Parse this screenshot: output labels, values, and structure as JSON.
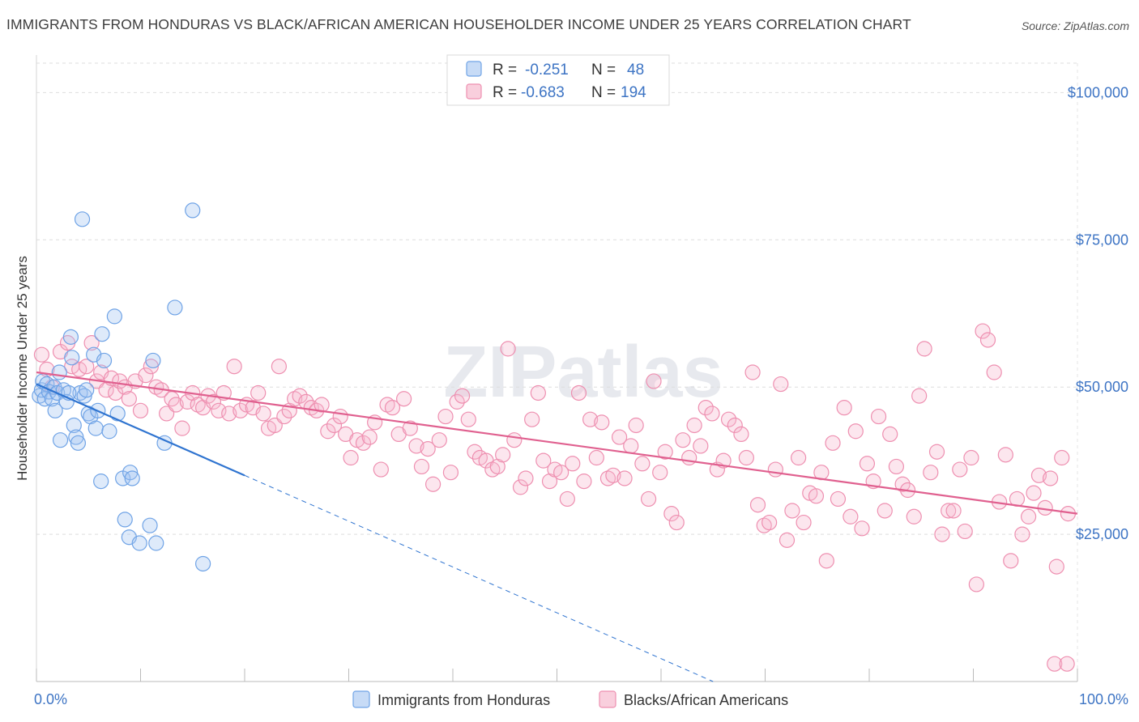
{
  "title": "IMMIGRANTS FROM HONDURAS VS BLACK/AFRICAN AMERICAN HOUSEHOLDER INCOME UNDER 25 YEARS CORRELATION CHART",
  "source": "Source: ZipAtlas.com",
  "watermark": "ZIPatlas",
  "colors": {
    "blue": "#6fa3e6",
    "blue_line": "#2f74d0",
    "pink": "#ee8fb0",
    "pink_line": "#e0608f",
    "tick_label": "#3d74c4"
  },
  "legend": {
    "r_label": "R =",
    "n_label": "N =",
    "rows": [
      {
        "r": "-0.251",
        "n": "48"
      },
      {
        "r": "-0.683",
        "n": "194"
      }
    ]
  },
  "chart_data": {
    "type": "scatter",
    "xlabel": "",
    "ylabel": "Householder Income Under 25 years",
    "xlim": [
      0,
      100
    ],
    "ylim": [
      0,
      105000
    ],
    "x_tick_labels": [
      "0.0%",
      "100.0%"
    ],
    "y_ticks": [
      25000,
      50000,
      75000,
      100000
    ],
    "y_tick_labels": [
      "$25,000",
      "$50,000",
      "$75,000",
      "$100,000"
    ],
    "grid": true,
    "legend_position": "top-center",
    "series": [
      {
        "name": "Immigrants from Honduras",
        "trend": {
          "x0": 0,
          "y0": 50500,
          "x1": 20,
          "y1": 35000,
          "dashed_to_x": 65,
          "dashed_to_y": 0
        },
        "points": [
          [
            0.3,
            48500
          ],
          [
            0.5,
            49500
          ],
          [
            0.6,
            51000
          ],
          [
            0.8,
            48000
          ],
          [
            1.0,
            50500
          ],
          [
            1.2,
            49200
          ],
          [
            1.5,
            48000
          ],
          [
            1.7,
            50000
          ],
          [
            1.8,
            46000
          ],
          [
            2.0,
            49000
          ],
          [
            2.2,
            52500
          ],
          [
            2.3,
            41000
          ],
          [
            2.6,
            49500
          ],
          [
            2.9,
            47500
          ],
          [
            3.3,
            58500
          ],
          [
            3.4,
            55000
          ],
          [
            3.6,
            43500
          ],
          [
            3.8,
            41500
          ],
          [
            4.0,
            40500
          ],
          [
            4.2,
            49000
          ],
          [
            4.4,
            78500
          ],
          [
            4.6,
            48500
          ],
          [
            4.8,
            49500
          ],
          [
            5.0,
            45500
          ],
          [
            5.2,
            45000
          ],
          [
            5.5,
            55500
          ],
          [
            5.7,
            43000
          ],
          [
            5.9,
            46000
          ],
          [
            6.3,
            59000
          ],
          [
            6.5,
            54500
          ],
          [
            7.0,
            42500
          ],
          [
            7.5,
            62000
          ],
          [
            7.8,
            45500
          ],
          [
            8.3,
            34500
          ],
          [
            8.5,
            27500
          ],
          [
            8.9,
            24500
          ],
          [
            9.0,
            35500
          ],
          [
            9.2,
            34500
          ],
          [
            9.9,
            23500
          ],
          [
            10.9,
            26500
          ],
          [
            11.2,
            54500
          ],
          [
            11.5,
            23500
          ],
          [
            12.3,
            40500
          ],
          [
            13.3,
            63500
          ],
          [
            15.0,
            80000
          ],
          [
            16.0,
            20000
          ],
          [
            6.2,
            34000
          ],
          [
            3.1,
            49000
          ]
        ]
      },
      {
        "name": "Blacks/African Americans",
        "trend": {
          "x0": 0,
          "y0": 52500,
          "x1": 100,
          "y1": 28500
        },
        "points": [
          [
            0.5,
            55500
          ],
          [
            1.0,
            53000
          ],
          [
            1.5,
            50000
          ],
          [
            2.3,
            56000
          ],
          [
            3.0,
            57500
          ],
          [
            3.4,
            53500
          ],
          [
            4.1,
            53000
          ],
          [
            4.8,
            53500
          ],
          [
            5.3,
            57500
          ],
          [
            5.8,
            51000
          ],
          [
            6.2,
            52500
          ],
          [
            6.7,
            49500
          ],
          [
            7.2,
            51500
          ],
          [
            7.6,
            49000
          ],
          [
            8.0,
            51000
          ],
          [
            8.5,
            50000
          ],
          [
            8.9,
            48000
          ],
          [
            9.5,
            51000
          ],
          [
            10.0,
            46000
          ],
          [
            10.5,
            52000
          ],
          [
            11.0,
            53500
          ],
          [
            11.5,
            50000
          ],
          [
            12.0,
            49500
          ],
          [
            12.5,
            45500
          ],
          [
            13.0,
            48000
          ],
          [
            13.4,
            47000
          ],
          [
            14.0,
            43000
          ],
          [
            14.5,
            47500
          ],
          [
            15.0,
            49000
          ],
          [
            15.5,
            47000
          ],
          [
            16.0,
            46500
          ],
          [
            16.5,
            48500
          ],
          [
            17.0,
            47500
          ],
          [
            17.5,
            46000
          ],
          [
            18.0,
            49000
          ],
          [
            18.5,
            45500
          ],
          [
            19.0,
            53500
          ],
          [
            19.6,
            46000
          ],
          [
            20.2,
            47000
          ],
          [
            20.8,
            46500
          ],
          [
            21.3,
            49000
          ],
          [
            21.8,
            45500
          ],
          [
            22.3,
            43000
          ],
          [
            22.9,
            43500
          ],
          [
            23.3,
            53500
          ],
          [
            23.8,
            45000
          ],
          [
            24.3,
            46000
          ],
          [
            24.8,
            48000
          ],
          [
            25.3,
            48500
          ],
          [
            25.9,
            47500
          ],
          [
            26.4,
            46500
          ],
          [
            26.9,
            46000
          ],
          [
            27.4,
            47000
          ],
          [
            28.0,
            42500
          ],
          [
            28.6,
            43500
          ],
          [
            29.2,
            45000
          ],
          [
            29.7,
            42000
          ],
          [
            30.2,
            38000
          ],
          [
            30.8,
            41000
          ],
          [
            31.4,
            40500
          ],
          [
            32.0,
            41500
          ],
          [
            32.5,
            44000
          ],
          [
            33.1,
            36000
          ],
          [
            33.7,
            47000
          ],
          [
            34.2,
            46500
          ],
          [
            34.8,
            42000
          ],
          [
            35.3,
            48000
          ],
          [
            35.9,
            43000
          ],
          [
            36.5,
            40000
          ],
          [
            37.0,
            36500
          ],
          [
            37.6,
            39500
          ],
          [
            38.1,
            33500
          ],
          [
            38.7,
            41000
          ],
          [
            39.3,
            45000
          ],
          [
            39.8,
            35500
          ],
          [
            40.4,
            47500
          ],
          [
            40.9,
            48500
          ],
          [
            41.5,
            44500
          ],
          [
            42.1,
            39000
          ],
          [
            42.6,
            38000
          ],
          [
            43.2,
            37500
          ],
          [
            43.8,
            36000
          ],
          [
            44.3,
            36500
          ],
          [
            44.8,
            38500
          ],
          [
            45.3,
            56500
          ],
          [
            45.9,
            41000
          ],
          [
            46.5,
            33000
          ],
          [
            47.0,
            34500
          ],
          [
            47.6,
            44500
          ],
          [
            48.2,
            49000
          ],
          [
            48.7,
            37500
          ],
          [
            49.3,
            34000
          ],
          [
            49.8,
            36000
          ],
          [
            50.4,
            35500
          ],
          [
            51.0,
            31000
          ],
          [
            51.5,
            37000
          ],
          [
            52.1,
            49000
          ],
          [
            52.6,
            34000
          ],
          [
            53.2,
            44500
          ],
          [
            53.8,
            38000
          ],
          [
            54.3,
            44000
          ],
          [
            54.9,
            34500
          ],
          [
            55.4,
            35000
          ],
          [
            56.0,
            41500
          ],
          [
            56.5,
            34500
          ],
          [
            57.1,
            40000
          ],
          [
            57.6,
            43500
          ],
          [
            58.2,
            37000
          ],
          [
            58.8,
            31000
          ],
          [
            59.3,
            51000
          ],
          [
            59.9,
            35500
          ],
          [
            60.4,
            39000
          ],
          [
            61.0,
            28500
          ],
          [
            61.5,
            27000
          ],
          [
            62.1,
            41000
          ],
          [
            62.7,
            38000
          ],
          [
            63.2,
            43500
          ],
          [
            63.8,
            40000
          ],
          [
            64.3,
            46500
          ],
          [
            64.9,
            45500
          ],
          [
            65.4,
            36000
          ],
          [
            66.0,
            37500
          ],
          [
            66.5,
            44500
          ],
          [
            67.1,
            43500
          ],
          [
            67.7,
            42000
          ],
          [
            68.2,
            38000
          ],
          [
            68.8,
            52500
          ],
          [
            69.3,
            30000
          ],
          [
            69.9,
            26500
          ],
          [
            70.4,
            27000
          ],
          [
            71.0,
            36000
          ],
          [
            71.5,
            50500
          ],
          [
            72.1,
            24000
          ],
          [
            72.6,
            29000
          ],
          [
            73.2,
            38000
          ],
          [
            73.7,
            27000
          ],
          [
            74.3,
            32000
          ],
          [
            74.9,
            31500
          ],
          [
            75.4,
            35500
          ],
          [
            75.9,
            20500
          ],
          [
            76.5,
            40500
          ],
          [
            77.0,
            31000
          ],
          [
            77.6,
            46500
          ],
          [
            78.2,
            28000
          ],
          [
            78.7,
            42500
          ],
          [
            79.3,
            26000
          ],
          [
            79.8,
            37000
          ],
          [
            80.4,
            34000
          ],
          [
            80.9,
            45000
          ],
          [
            81.5,
            29000
          ],
          [
            82.0,
            42000
          ],
          [
            82.6,
            36500
          ],
          [
            83.2,
            33500
          ],
          [
            83.7,
            32500
          ],
          [
            84.3,
            28000
          ],
          [
            84.8,
            48500
          ],
          [
            85.3,
            56500
          ],
          [
            85.9,
            35500
          ],
          [
            86.5,
            39000
          ],
          [
            87.0,
            25000
          ],
          [
            87.6,
            29000
          ],
          [
            88.1,
            29000
          ],
          [
            88.7,
            36000
          ],
          [
            89.2,
            25500
          ],
          [
            89.8,
            38000
          ],
          [
            90.3,
            16500
          ],
          [
            90.9,
            59500
          ],
          [
            91.4,
            58000
          ],
          [
            92.0,
            52500
          ],
          [
            92.5,
            30500
          ],
          [
            93.1,
            38500
          ],
          [
            93.6,
            20500
          ],
          [
            94.2,
            31000
          ],
          [
            94.7,
            25000
          ],
          [
            95.3,
            28000
          ],
          [
            95.8,
            32000
          ],
          [
            96.3,
            35000
          ],
          [
            96.9,
            29500
          ],
          [
            97.4,
            34500
          ],
          [
            98.0,
            19500
          ],
          [
            98.5,
            38000
          ],
          [
            99.1,
            28500
          ],
          [
            97.8,
            3000
          ],
          [
            99.0,
            3000
          ]
        ]
      }
    ]
  }
}
